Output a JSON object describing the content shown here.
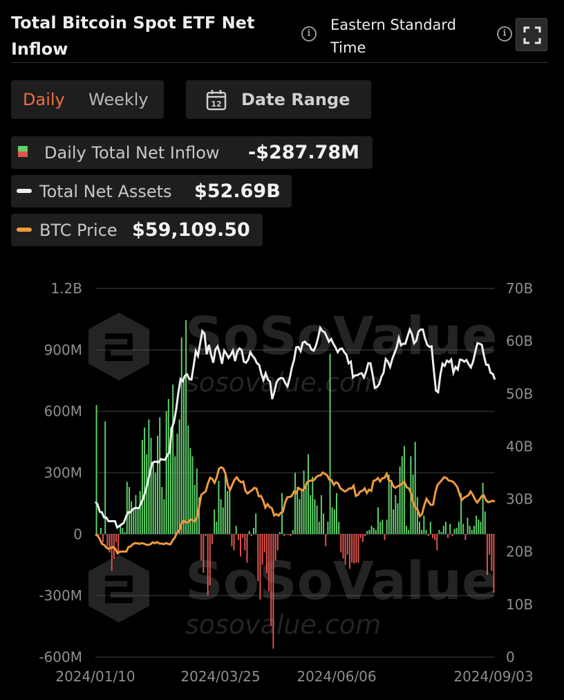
{
  "header": {
    "title": "Total Bitcoin Spot ETF Net Inflow",
    "timezone": "Eastern Standard Time"
  },
  "controls": {
    "daily_label": "Daily",
    "weekly_label": "Weekly",
    "date_range_label": "Date Range",
    "calendar_day": "12"
  },
  "legend": {
    "inflow_label": "Daily Total Net Inflow",
    "inflow_value": "-$287.78M",
    "assets_label": "Total Net Assets",
    "assets_value": "$52.69B",
    "price_label": "BTC Price",
    "price_value": "$59,109.50"
  },
  "watermark": {
    "brand": "SoSoValue",
    "url": "sosovalue.com"
  },
  "colors": {
    "positive": "#5fd36a",
    "negative": "#e0554e",
    "assets_line": "#eeeeee",
    "price_line": "#f09a3e",
    "accent": "#ee6f43"
  },
  "chart_data": {
    "type": "bar",
    "title": "Total Bitcoin Spot ETF Net Inflow",
    "x_tick_labels": [
      "2024/01/10",
      "2024/03/25",
      "2024/06/06",
      "2024/09/03"
    ],
    "y_left": {
      "ticks": [
        "1.2B",
        "900M",
        "600M",
        "300M",
        "0",
        "-300M",
        "-600M"
      ],
      "ylim_millions": [
        -600,
        1200
      ]
    },
    "y_right": {
      "ticks": [
        "70B",
        "60B",
        "50B",
        "40B",
        "30B",
        "20B",
        "10B",
        "0"
      ],
      "ylim_billions": [
        0,
        70
      ]
    },
    "grid": true,
    "series": [
      {
        "name": "Daily Total Net Inflow",
        "type": "bar",
        "unit": "USD millions",
        "values": [
          630,
          -5,
          30,
          -40,
          550,
          -60,
          -90,
          -180,
          -120,
          -40,
          -100,
          50,
          30,
          10,
          255,
          230,
          160,
          120,
          190,
          130,
          210,
          460,
          520,
          390,
          560,
          470,
          350,
          300,
          480,
          570,
          230,
          170,
          600,
          660,
          520,
          730,
          380,
          490,
          560,
          960,
          770,
          1045,
          530,
          420,
          380,
          240,
          320,
          180,
          -130,
          -190,
          -10,
          -300,
          -250,
          -50,
          120,
          60,
          260,
          170,
          130,
          300,
          210,
          220,
          -60,
          -80,
          40,
          -30,
          -110,
          -20,
          -80,
          -140,
          15,
          -10,
          30,
          100,
          -230,
          -320,
          -150,
          -90,
          -190,
          -280,
          -450,
          -560,
          -130,
          -80,
          10,
          200,
          -10,
          0,
          -5,
          -10,
          20,
          300,
          230,
          170,
          220,
          310,
          250,
          390,
          190,
          280,
          170,
          140,
          60,
          190,
          100,
          -60,
          60,
          880,
          130,
          120,
          200,
          60,
          -90,
          -120,
          -150,
          -100,
          -170,
          -140,
          -145,
          -140,
          -140,
          -20,
          -40,
          -10,
          15,
          20,
          40,
          30,
          20,
          130,
          60,
          70,
          -30,
          70,
          290,
          250,
          120,
          190,
          150,
          330,
          380,
          430,
          40,
          20,
          380,
          290,
          450,
          180,
          60,
          20,
          90,
          20,
          -10,
          60,
          -20,
          -30,
          -80,
          20,
          10,
          40,
          60,
          -20,
          50,
          -10,
          25,
          30,
          60,
          200,
          50,
          -30,
          80,
          40,
          20,
          40,
          90,
          70,
          60,
          250,
          110,
          -200,
          -100,
          -180,
          -288
        ]
      },
      {
        "name": "Total Net Assets",
        "type": "line",
        "axis": "right",
        "unit": "USD billions",
        "values": [
          29.5,
          29.0,
          27.6,
          27.5,
          26.5,
          26.5,
          25.8,
          25.8,
          25.8,
          25.8,
          24.6,
          24.9,
          25.2,
          25.5,
          26.6,
          27.5,
          27.5,
          28.0,
          28.3,
          28.3,
          28.3,
          29.3,
          30.2,
          31.6,
          33.2,
          35.1,
          36.8,
          37.1,
          37.1,
          37.0,
          37.6,
          37.5,
          37.5,
          38.4,
          38.9,
          43.5,
          44.6,
          47.0,
          50.2,
          52.8,
          52.4,
          53.4,
          53.7,
          52.8,
          52.7,
          55.3,
          58.1,
          57.2,
          59.6,
          61.9,
          61.4,
          57.5,
          59.3,
          57.4,
          55.9,
          58.4,
          59.0,
          57.6,
          55.7,
          58.2,
          57.6,
          56.8,
          57.4,
          58.2,
          56.2,
          58.0,
          58.6,
          58.3,
          56.1,
          55.9,
          56.5,
          57.9,
          57.2,
          56.7,
          55.8,
          55.5,
          53.8,
          52.6,
          53.9,
          52.7,
          52.3,
          49.0,
          50.4,
          52.2,
          52.8,
          53.0,
          52.9,
          52.0,
          51.4,
          52.9,
          55.0,
          56.4,
          58.8,
          58.9,
          58.1,
          59.7,
          59.9,
          59.4,
          59.3,
          58.4,
          58.2,
          59.1,
          60.6,
          62.5,
          61.9,
          61.7,
          60.8,
          59.9,
          60.4,
          59.5,
          58.8,
          57.9,
          58.5,
          58.6,
          57.9,
          57.4,
          55.8,
          56.1,
          53.1,
          53.5,
          53.5,
          53.8,
          53.9,
          53.1,
          54.2,
          55.8,
          55.8,
          53.6,
          51.1,
          51.3,
          51.8,
          53.2,
          54.0,
          56.6,
          56.1,
          55.1,
          56.6,
          57.7,
          58.8,
          60.6,
          59.2,
          59.5,
          59.5,
          60.9,
          62.2,
          61.3,
          59.6,
          60.1,
          61.8,
          62.2,
          62.2,
          60.5,
          59.3,
          58.9,
          59.0,
          54.6,
          50.6,
          50.3,
          53.5,
          55.7,
          55.3,
          56.3,
          56.0,
          56.5,
          54.0,
          55.1,
          54.6,
          56.5,
          56.4,
          56.1,
          56.4,
          55.6,
          55.0,
          56.1,
          57.9,
          59.6,
          59.5,
          59.3,
          57.2,
          55.5,
          55.5,
          54.0,
          53.8,
          52.7
        ]
      },
      {
        "name": "BTC Price",
        "type": "line",
        "axis": "right",
        "unit": "USD thousands",
        "values": [
          46.6,
          46.1,
          44.8,
          43.0,
          42.6,
          41.6,
          41.1,
          41.5,
          41.8,
          41.2,
          39.5,
          40.0,
          40.1,
          40.1,
          40.1,
          41.8,
          42.1,
          42.9,
          43.3,
          43.2,
          43.0,
          43.3,
          43.1,
          42.7,
          42.6,
          42.9,
          43.6,
          43.2,
          43.7,
          43.1,
          43.1,
          42.9,
          43.3,
          43.0,
          42.8,
          44.3,
          45.4,
          47.3,
          48.1,
          50.7,
          51.8,
          51.1,
          51.2,
          52.2,
          52.1,
          51.5,
          52.8,
          57.1,
          61.7,
          62.3,
          63.0,
          66.0,
          68.1,
          67.6,
          66.2,
          68.3,
          71.6,
          72.1,
          71.6,
          69.5,
          65.3,
          63.4,
          65.4,
          67.3,
          68.3,
          67.1,
          66.4,
          66.7,
          63.1,
          62.1,
          62.9,
          63.4,
          64.3,
          64.0,
          61.1,
          61.2,
          59.5,
          56.8,
          58.1,
          57.0,
          56.5,
          53.8,
          54.3,
          53.7,
          54.8,
          55.2,
          58.8,
          60.7,
          60.8,
          61.2,
          62.9,
          62.3,
          64.2,
          63.7,
          63.3,
          64.5,
          66.5,
          66.9,
          67.1,
          67.2,
          68.3,
          68.9,
          69.0,
          70.1,
          69.6,
          69.0,
          67.4,
          67.2,
          65.4,
          66.4,
          65.9,
          64.1,
          63.5,
          62.9,
          63.3,
          64.1,
          64.0,
          65.1,
          61.2,
          61.6,
          62.9,
          63.1,
          64.1,
          62.3,
          63.6,
          63.1,
          66.9,
          67.2,
          68.0,
          66.7,
          67.9,
          68.1,
          69.6,
          67.0,
          66.9,
          64.8,
          64.3,
          64.9,
          65.3,
          65.8,
          66.6,
          64.5,
          64.1,
          62.3,
          58.6,
          56.8,
          55.9,
          53.5,
          54.3,
          57.6,
          60.1,
          58.9,
          57.8,
          57.9,
          62.4,
          65.4,
          66.3,
          67.3,
          68.3,
          68.1,
          67.1,
          66.9,
          66.6,
          65.7,
          64.5,
          61.9,
          59.6,
          60.5,
          61.0,
          61.5,
          62.9,
          61.6,
          59.9,
          58.7,
          59.8,
          61.1,
          61.4,
          59.6,
          58.8,
          59.0,
          59.4,
          59.1
        ]
      }
    ]
  }
}
